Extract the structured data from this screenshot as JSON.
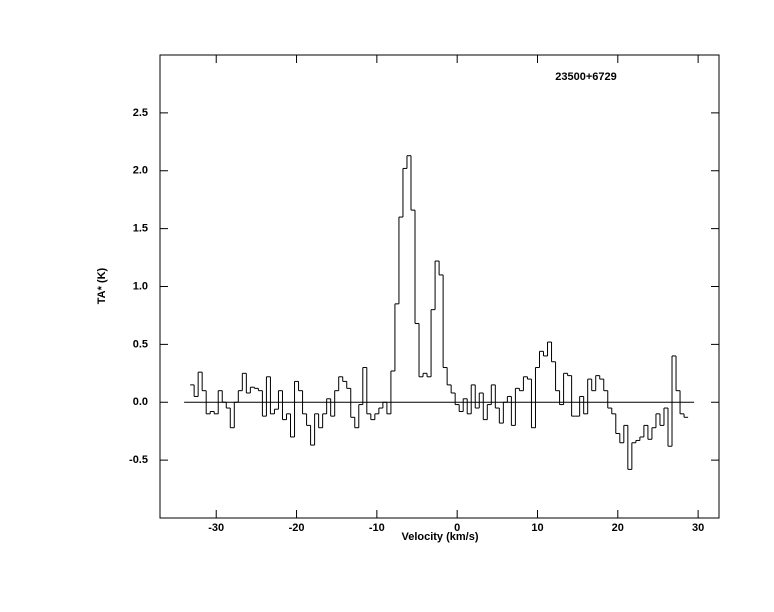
{
  "chart_data": {
    "type": "step",
    "annotation": "23500+6729",
    "xlabel": "Velocity (km/s)",
    "ylabel": "TA* (K)",
    "color": "#000000",
    "xlim": [
      -37,
      32.6
    ],
    "ylim": [
      -1,
      3
    ],
    "xticks": [
      -30,
      -20,
      -10,
      0,
      10,
      20,
      30
    ],
    "yticks": [
      {
        "value": -0.5,
        "label": "-0.5"
      },
      {
        "value": 0,
        "label": "0.0"
      },
      0.5,
      {
        "value": 1,
        "label": "1.0"
      },
      1.5,
      {
        "value": 2,
        "label": "2.0"
      },
      2.5
    ],
    "reference_line": {
      "y": 0,
      "x": [
        -34,
        29.5
      ]
    },
    "x": [
      -33,
      -32.5,
      -32,
      -31.5,
      -31,
      -30.5,
      -30,
      -29.5,
      -29,
      -28.5,
      -28,
      -27.5,
      -27,
      -26.5,
      -26,
      -25.5,
      -25,
      -24.5,
      -24,
      -23.5,
      -23,
      -22.5,
      -22,
      -21.5,
      -21,
      -20.5,
      -20,
      -19.5,
      -19,
      -18.5,
      -18,
      -17.5,
      -17,
      -16.5,
      -16,
      -15.5,
      -15,
      -14.5,
      -14,
      -13.5,
      -13,
      -12.5,
      -12,
      -11.5,
      -11,
      -10.5,
      -10,
      -9.5,
      -9,
      -8.5,
      -8,
      -7.5,
      -7,
      -6.5,
      -6,
      -5.5,
      -5,
      -4.5,
      -4,
      -3.5,
      -3,
      -2.5,
      -2,
      -1.5,
      -1,
      -0.5,
      0,
      0.5,
      1,
      1.5,
      2,
      2.5,
      3,
      3.5,
      4,
      4.5,
      5,
      5.5,
      6,
      6.5,
      7,
      7.5,
      8,
      8.5,
      9,
      9.5,
      10,
      10.5,
      11,
      11.5,
      12,
      12.5,
      13,
      13.5,
      14,
      14.5,
      15,
      15.5,
      16,
      16.5,
      17,
      17.5,
      18,
      18.5,
      19,
      19.5,
      20,
      20.5,
      21,
      21.5,
      22,
      22.5,
      23,
      23.5,
      24,
      24.5,
      25,
      25.5,
      26,
      26.5,
      27,
      27.5,
      28,
      28.5
    ],
    "values": [
      0.15,
      0.05,
      0.26,
      0.1,
      -0.1,
      -0.08,
      -0.1,
      0.1,
      0.0,
      -0.05,
      -0.22,
      0.0,
      0.1,
      0.25,
      0.08,
      0.13,
      0.12,
      0.1,
      -0.12,
      0.22,
      -0.1,
      -0.06,
      0.1,
      -0.15,
      -0.1,
      -0.3,
      0.18,
      0.1,
      -0.1,
      -0.2,
      -0.37,
      -0.1,
      -0.22,
      -0.1,
      0.03,
      -0.12,
      0.1,
      0.22,
      0.18,
      0.12,
      -0.13,
      -0.22,
      -0.02,
      0.3,
      -0.1,
      -0.15,
      -0.1,
      -0.05,
      0.0,
      -0.1,
      0.27,
      0.85,
      1.6,
      2.02,
      2.13,
      1.66,
      0.68,
      0.22,
      0.25,
      0.22,
      0.8,
      1.22,
      1.1,
      0.3,
      0.15,
      0.08,
      -0.02,
      -0.08,
      0.03,
      -0.1,
      0.15,
      -0.05,
      0.08,
      -0.15,
      -0.02,
      0.15,
      -0.05,
      -0.18,
      0.0,
      0.05,
      -0.2,
      0.12,
      0.1,
      0.22,
      0.2,
      -0.22,
      0.3,
      0.44,
      0.4,
      0.52,
      0.35,
      0.1,
      -0.02,
      0.25,
      0.23,
      -0.12,
      -0.12,
      0.05,
      -0.1,
      0.2,
      0.1,
      0.23,
      0.2,
      0.1,
      -0.05,
      -0.1,
      -0.27,
      -0.35,
      -0.2,
      -0.58,
      -0.35,
      -0.33,
      -0.3,
      -0.2,
      -0.32,
      -0.22,
      -0.1,
      -0.2,
      -0.05,
      -0.38,
      0.4,
      0.1,
      -0.1,
      -0.13
    ]
  }
}
